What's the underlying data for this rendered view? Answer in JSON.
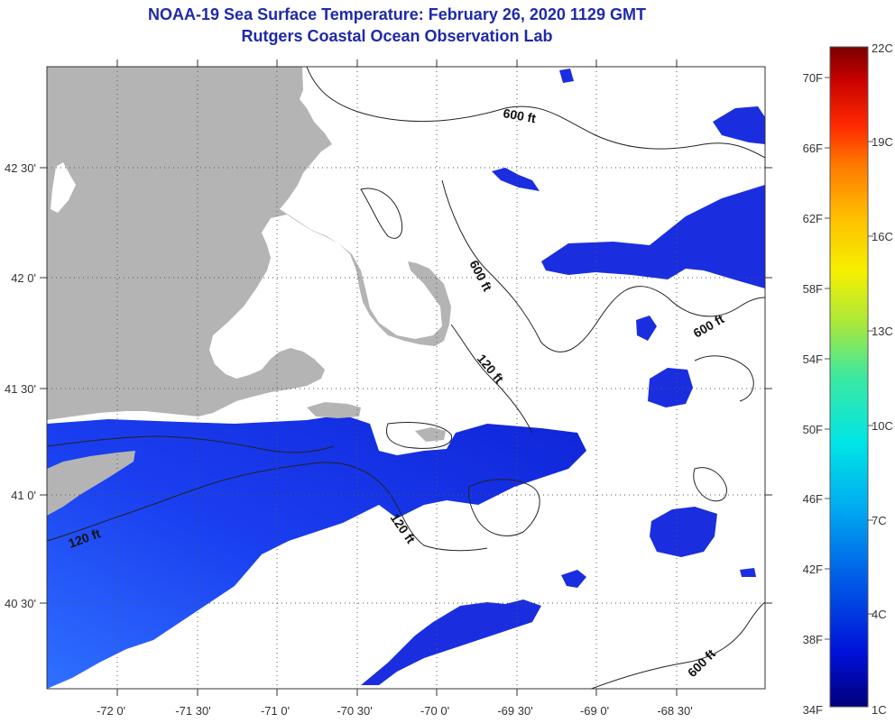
{
  "header": {
    "title": "NOAA-19 Sea Surface Temperature:  February 26, 2020 1129 GMT",
    "subtitle": "Rutgers Coastal Ocean Observation Lab"
  },
  "map": {
    "longitude_labels": [
      "-72 0'",
      "-71 30'",
      "-71 0'",
      "-70 30'",
      "-70 0'",
      "-69 30'",
      "-69 0'",
      "-68 30'"
    ],
    "latitude_labels": [
      "42 30'",
      "42 0'",
      "41 30'",
      "41 0'",
      "40 30'"
    ],
    "contour_labels": [
      "600 ft",
      "600 ft",
      "600 ft",
      "600 ft",
      "120 ft",
      "120 ft",
      "120 ft"
    ],
    "land_color": "#b4b4b4",
    "cloud_color": "#ffffff",
    "grid": "dotted"
  },
  "colorbar": {
    "fahrenheit_labels": [
      "70F",
      "66F",
      "62F",
      "58F",
      "54F",
      "50F",
      "46F",
      "42F",
      "38F",
      "34F"
    ],
    "celsius_labels": [
      "22C",
      "19C",
      "16C",
      "13C",
      "10C",
      "7C",
      "4C",
      "1C"
    ],
    "colors": [
      "#7a0000",
      "#c80000",
      "#ff2a00",
      "#ff7a00",
      "#ffc000",
      "#f5f000",
      "#a8e83c",
      "#3ce8a0",
      "#00e6e6",
      "#00aaf0",
      "#0060e8",
      "#0010d8",
      "#00007a"
    ]
  }
}
